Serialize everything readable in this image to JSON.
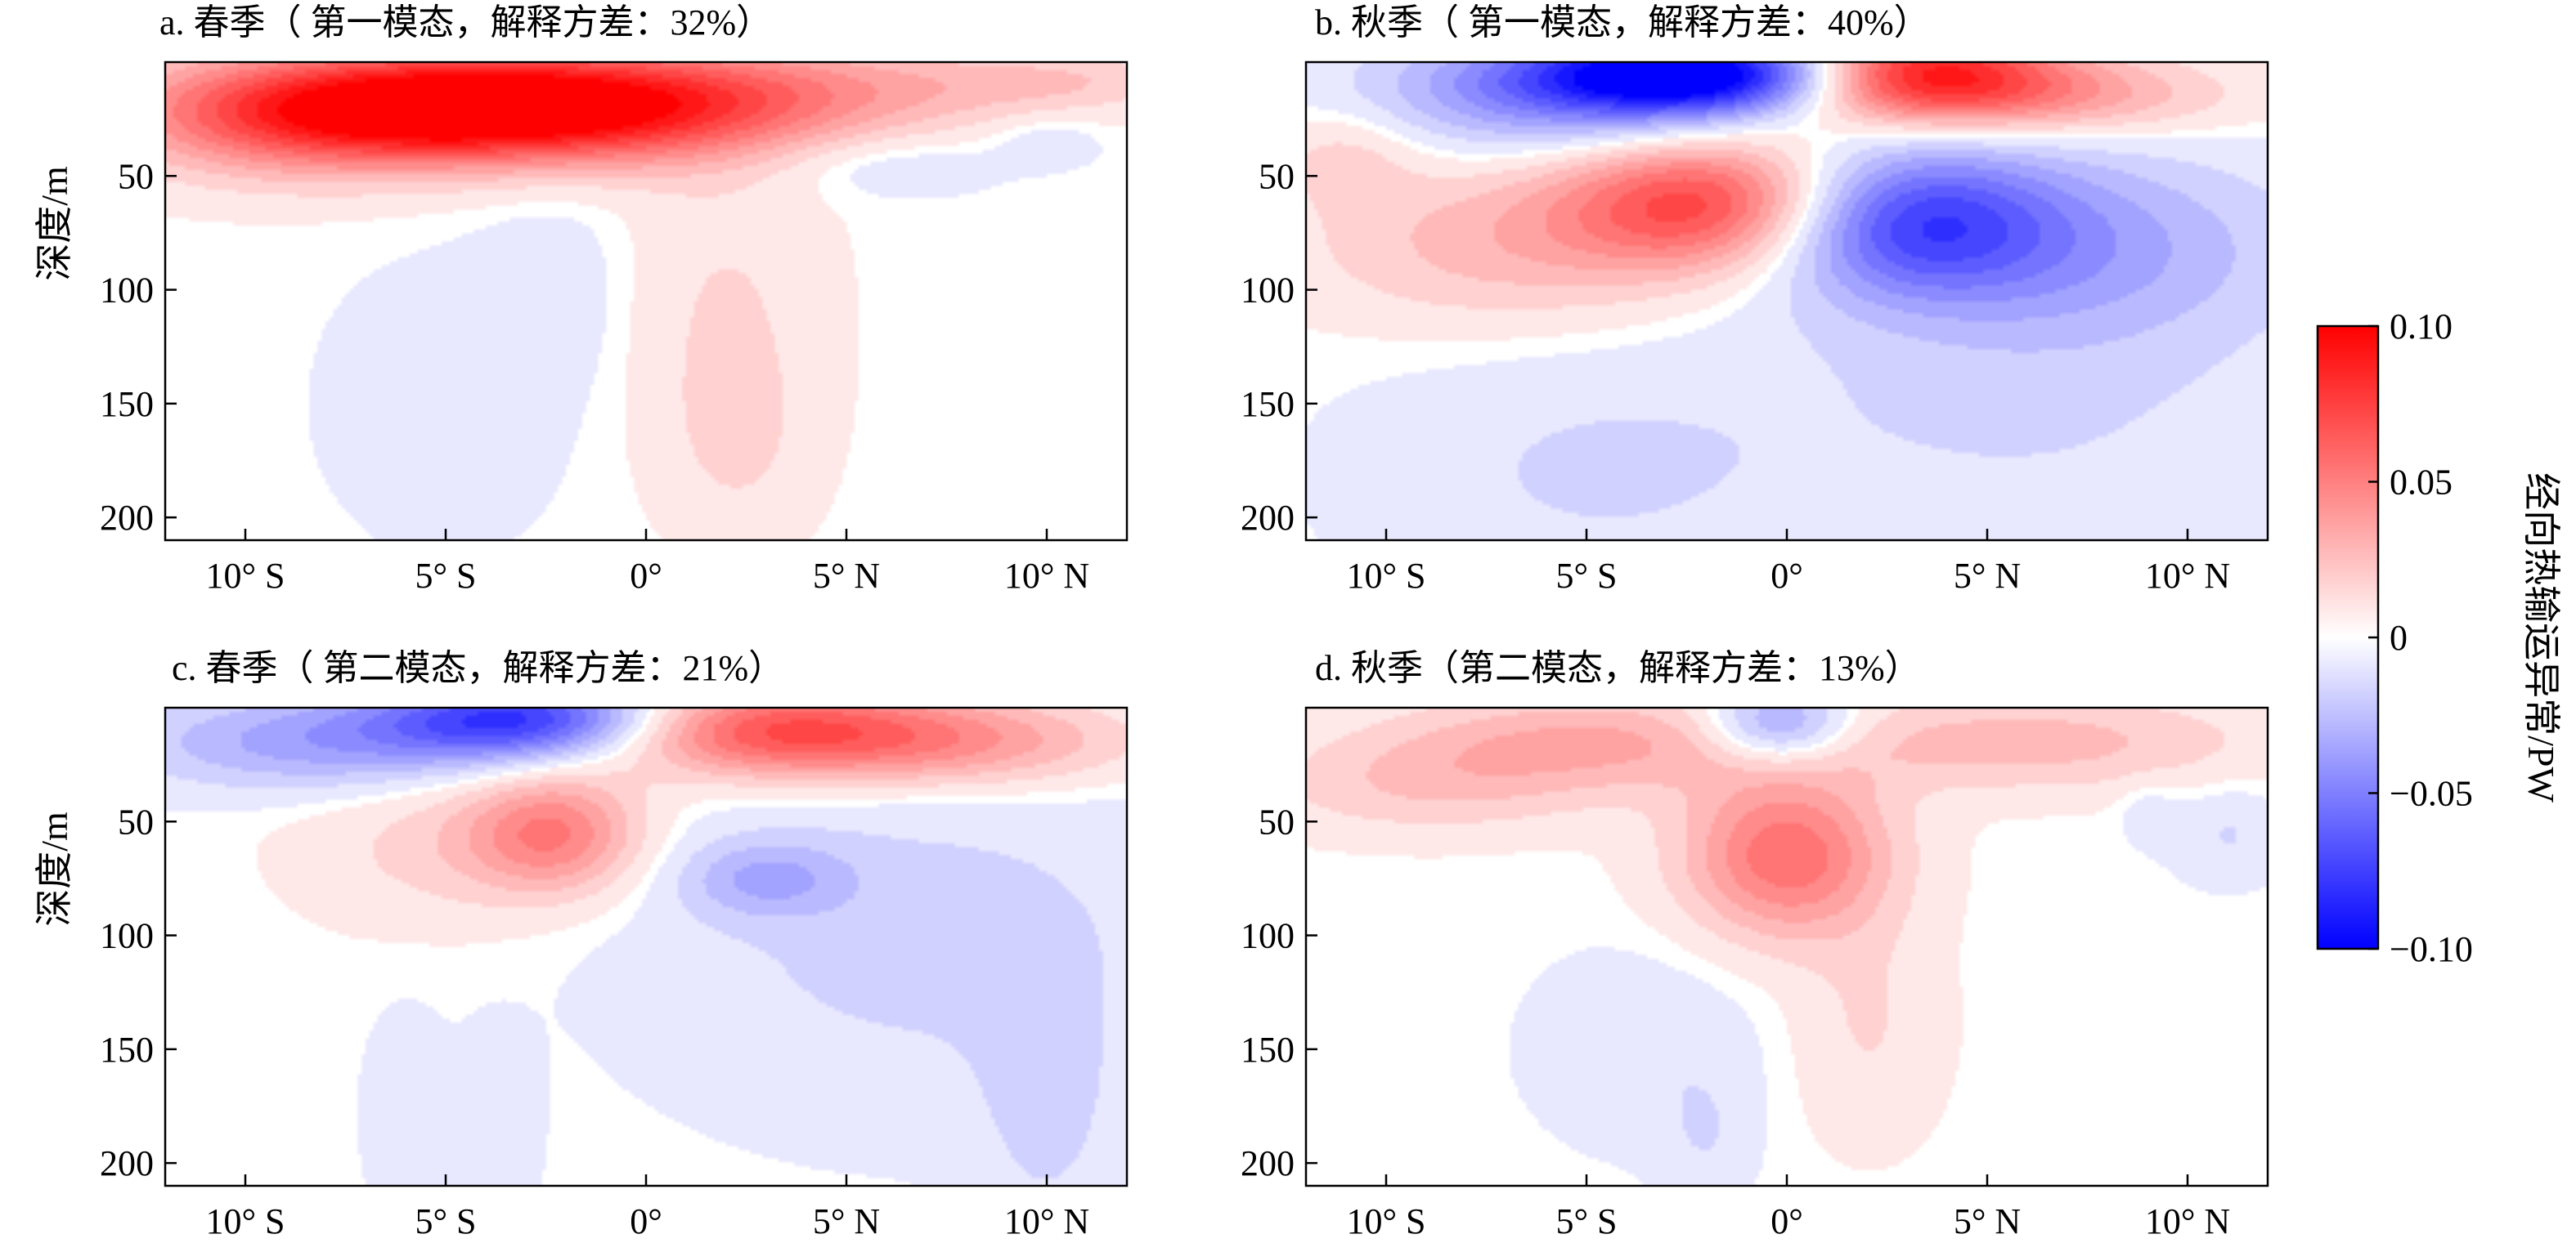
{
  "chart_data": [
    {
      "type": "heatmap",
      "title": "a. 春季（ 第一模态，解释方差：32%）",
      "ylabel": "深度/m",
      "xlabel": "",
      "x_ticks": [
        "10° S",
        "5° S",
        "0°",
        "5° N",
        "10° N"
      ],
      "x_tick_values": [
        -10,
        -5,
        0,
        5,
        10
      ],
      "y_ticks": [
        "50",
        "100",
        "150",
        "200"
      ],
      "y_tick_values": [
        50,
        100,
        150,
        200
      ],
      "xlim": [
        -12,
        12
      ],
      "ylim": [
        0,
        210
      ],
      "y_reversed": true,
      "features": [
        {
          "lat": -4.5,
          "depth": 20,
          "value": 0.09,
          "sx": 4.5,
          "sd": 16
        },
        {
          "lat": -1,
          "depth": 18,
          "value": 0.045,
          "sx": 5,
          "sd": 18
        },
        {
          "lat": -9,
          "depth": 25,
          "value": 0.03,
          "sx": 3,
          "sd": 20
        },
        {
          "lat": 6,
          "depth": 10,
          "value": 0.015,
          "sx": 4,
          "sd": 12
        },
        {
          "lat": 10.5,
          "depth": 8,
          "value": 0.012,
          "sx": 2,
          "sd": 8
        },
        {
          "lat": 2,
          "depth": 110,
          "value": 0.012,
          "sx": 1.8,
          "sd": 50
        },
        {
          "lat": 2.3,
          "depth": 170,
          "value": 0.009,
          "sx": 1.3,
          "sd": 30
        },
        {
          "lat": -5,
          "depth": 150,
          "value": -0.01,
          "sx": 2,
          "sd": 40
        },
        {
          "lat": -2.3,
          "depth": 100,
          "value": -0.008,
          "sx": 1.3,
          "sd": 30
        },
        {
          "lat": 6,
          "depth": 45,
          "value": -0.012,
          "sx": 2,
          "sd": 10
        },
        {
          "lat": 10,
          "depth": 35,
          "value": -0.01,
          "sx": 1,
          "sd": 8
        }
      ]
    },
    {
      "type": "heatmap",
      "title": "b. 秋季（ 第一模态，解释方差：40%）",
      "ylabel": "",
      "xlabel": "",
      "x_ticks": [
        "10° S",
        "5° S",
        "0°",
        "5° N",
        "10° N"
      ],
      "x_tick_values": [
        -10,
        -5,
        0,
        5,
        10
      ],
      "y_ticks": [
        "50",
        "100",
        "150",
        "200"
      ],
      "y_tick_values": [
        50,
        100,
        150,
        200
      ],
      "xlim": [
        -12,
        12
      ],
      "ylim": [
        0,
        210
      ],
      "y_reversed": true,
      "features": [
        {
          "lat": -2,
          "depth": 5,
          "value": -0.11,
          "sx": 3,
          "sd": 12
        },
        {
          "lat": -5.5,
          "depth": 15,
          "value": -0.04,
          "sx": 3.5,
          "sd": 18
        },
        {
          "lat": 3,
          "depth": 5,
          "value": 0.1,
          "sx": 2.5,
          "sd": 14
        },
        {
          "lat": 7,
          "depth": 15,
          "value": 0.03,
          "sx": 3,
          "sd": 12
        },
        {
          "lat": -2,
          "depth": 62,
          "value": 0.07,
          "sx": 2.5,
          "sd": 20
        },
        {
          "lat": -7,
          "depth": 80,
          "value": 0.025,
          "sx": 3.5,
          "sd": 25
        },
        {
          "lat": 3,
          "depth": 70,
          "value": -0.06,
          "sx": 2.5,
          "sd": 22
        },
        {
          "lat": 7,
          "depth": 80,
          "value": -0.03,
          "sx": 4,
          "sd": 30
        },
        {
          "lat": -11,
          "depth": 40,
          "value": 0.015,
          "sx": 1.3,
          "sd": 15
        },
        {
          "lat": -5,
          "depth": 180,
          "value": -0.012,
          "sx": 4,
          "sd": 40
        },
        {
          "lat": 6,
          "depth": 150,
          "value": -0.012,
          "sx": 5,
          "sd": 50
        }
      ]
    },
    {
      "type": "heatmap",
      "title": "c. 春季（ 第二模态，解释方差：21%）",
      "ylabel": "深度/m",
      "xlabel": "",
      "x_ticks": [
        "10° S",
        "5° S",
        "0°",
        "5° N",
        "10° N"
      ],
      "x_tick_values": [
        -10,
        -5,
        0,
        5,
        10
      ],
      "y_ticks": [
        "50",
        "100",
        "150",
        "200"
      ],
      "y_tick_values": [
        50,
        100,
        150,
        200
      ],
      "xlim": [
        -12,
        12
      ],
      "ylim": [
        0,
        210
      ],
      "y_reversed": true,
      "features": [
        {
          "lat": -3,
          "depth": 5,
          "value": -0.075,
          "sx": 2.5,
          "sd": 12
        },
        {
          "lat": -8,
          "depth": 15,
          "value": -0.035,
          "sx": 3.5,
          "sd": 15
        },
        {
          "lat": 3,
          "depth": 10,
          "value": 0.065,
          "sx": 3,
          "sd": 14
        },
        {
          "lat": 8,
          "depth": 15,
          "value": 0.035,
          "sx": 3,
          "sd": 14
        },
        {
          "lat": -2.3,
          "depth": 55,
          "value": 0.045,
          "sx": 1.5,
          "sd": 18
        },
        {
          "lat": -5,
          "depth": 60,
          "value": 0.015,
          "sx": 2.5,
          "sd": 25
        },
        {
          "lat": 3,
          "depth": 75,
          "value": -0.025,
          "sx": 1.5,
          "sd": 12
        },
        {
          "lat": 7,
          "depth": 100,
          "value": -0.015,
          "sx": 5,
          "sd": 55
        },
        {
          "lat": -6,
          "depth": 180,
          "value": -0.01,
          "sx": 0.7,
          "sd": 30
        },
        {
          "lat": -3.8,
          "depth": 190,
          "value": -0.01,
          "sx": 0.7,
          "sd": 30
        },
        {
          "lat": 10,
          "depth": 180,
          "value": -0.012,
          "sx": 1.2,
          "sd": 40
        }
      ]
    },
    {
      "type": "heatmap",
      "title": "d. 秋季（第二模态，解释方差：13%）",
      "ylabel": "",
      "xlabel": "",
      "x_ticks": [
        "10° S",
        "5° S",
        "0°",
        "5° N",
        "10° N"
      ],
      "x_tick_values": [
        -10,
        -5,
        0,
        5,
        10
      ],
      "y_ticks": [
        "50",
        "100",
        "150",
        "200"
      ],
      "y_tick_values": [
        50,
        100,
        150,
        200
      ],
      "xlim": [
        -12,
        12
      ],
      "ylim": [
        0,
        210
      ],
      "y_reversed": true,
      "features": [
        {
          "lat": -0.2,
          "depth": 8,
          "value": -0.045,
          "sx": 1.3,
          "sd": 12
        },
        {
          "lat": 0,
          "depth": 65,
          "value": 0.055,
          "sx": 1.8,
          "sd": 25
        },
        {
          "lat": -5,
          "depth": 15,
          "value": 0.03,
          "sx": 3.5,
          "sd": 15
        },
        {
          "lat": 6,
          "depth": 15,
          "value": 0.025,
          "sx": 4,
          "sd": 15
        },
        {
          "lat": -9,
          "depth": 35,
          "value": 0.018,
          "sx": 3,
          "sd": 15
        },
        {
          "lat": 2,
          "depth": 140,
          "value": 0.012,
          "sx": 1.3,
          "sd": 35
        },
        {
          "lat": -3.5,
          "depth": 150,
          "value": -0.01,
          "sx": 2,
          "sd": 30
        },
        {
          "lat": -2,
          "depth": 190,
          "value": -0.009,
          "sx": 0.8,
          "sd": 20
        },
        {
          "lat": 11,
          "depth": 55,
          "value": -0.012,
          "sx": 1,
          "sd": 15
        },
        {
          "lat": 9,
          "depth": 45,
          "value": -0.008,
          "sx": 0.5,
          "sd": 10
        }
      ]
    }
  ],
  "colorbar": {
    "label": "经向热输运异常/PW",
    "tick_labels": [
      "0.10",
      "0.05",
      "0",
      "−0.05",
      "−0.10"
    ],
    "tick_values": [
      0.1,
      0.05,
      0,
      -0.05,
      -0.1
    ],
    "range": [
      -0.1,
      0.1
    ],
    "colormap": [
      "#0000ff",
      "#ffffff",
      "#ff0000"
    ]
  }
}
